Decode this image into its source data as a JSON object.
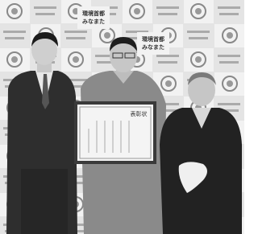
{
  "backdrop": {
    "line1": "環境首都",
    "line2": "みなまた"
  },
  "certificate": {
    "title": "表彰状"
  }
}
